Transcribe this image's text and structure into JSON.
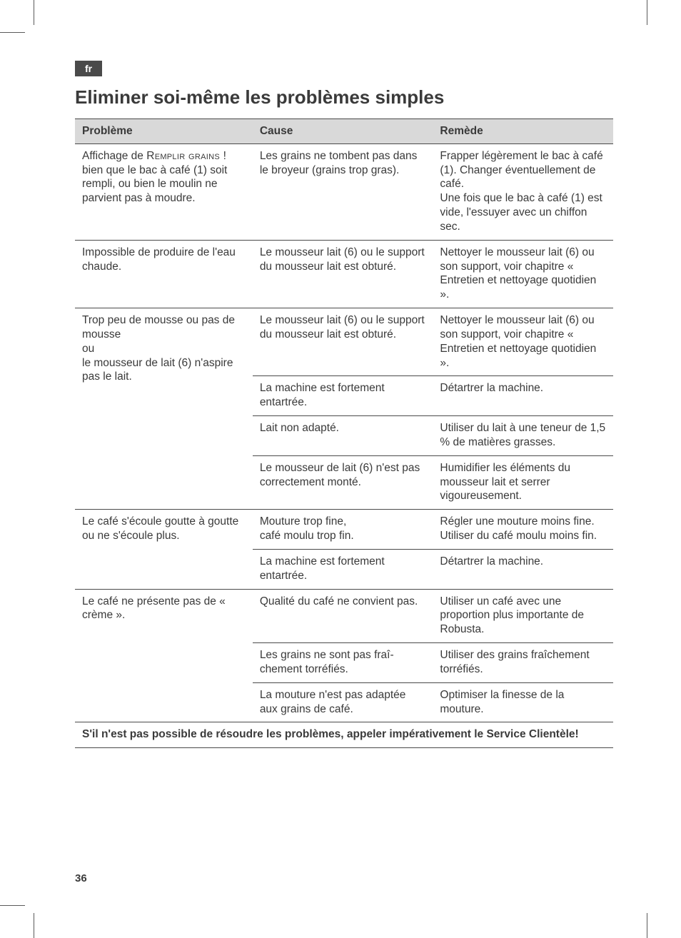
{
  "lang_tab": "fr",
  "title": "Eliminer soi-même les problèmes simples",
  "page_number": "36",
  "table": {
    "headers": [
      "Problème",
      "Cause",
      "Remède"
    ],
    "footer": "S'il n'est pas possible de résoudre les problèmes, appeler impérativement le Service Clientèle!",
    "rows": [
      {
        "problem_pre": "Affichage de ",
        "problem_sc": "Remplir grains !",
        "problem_post": " bien que le bac à café (1) soit rempli, ou bien le moulin ne parvient pas à moudre.",
        "cause": "Les grains ne tombent pas dans le broyeur (grains trop gras).",
        "remedy": "Frapper légèrement le bac à café (1). Changer éventuel­lement de café.\nUne fois que le bac à café (1) est vide, l'essuyer avec un chiffon sec."
      },
      {
        "problem": "Impossible de produire de l'eau chaude.",
        "cause": "Le mousseur lait (6) ou le support du mousseur lait est obturé.",
        "remedy": "Nettoyer le mousseur lait (6) ou son support, voir chapitre « Entretien et nettoyage quotidien »."
      },
      {
        "problem": "Trop peu de mousse ou pas de mousse\nou\nle mousseur de lait (6) n'aspire pas le lait.",
        "problem_rowspan": 4,
        "cause": "Le mousseur lait (6) ou le support du mousseur lait est obturé.",
        "remedy": "Nettoyer le mousseur lait (6) ou son support, voir chapitre « Entretien et nettoyage quotidien »."
      },
      {
        "cause": "La machine est fortement entartrée.",
        "remedy": "Détartrer la machine."
      },
      {
        "cause": "Lait non adapté.",
        "remedy": "Utiliser du lait à une te­neur de 1,5 % de matières grasses."
      },
      {
        "cause": "Le mousseur de lait (6) n'est pas correctement monté.",
        "remedy": "Humidifier les éléments du mousseur lait et serrer vigoureusement."
      },
      {
        "problem": "Le café s'écoule goutte à goutte ou ne s'écoule plus.",
        "problem_rowspan": 2,
        "cause": "Mouture trop fine,\ncafé moulu trop fin.",
        "remedy": "Régler une mouture moins fine. Utiliser du café moulu moins fin."
      },
      {
        "cause": "La machine est fortement entartrée.",
        "remedy": "Détartrer la machine."
      },
      {
        "problem": "Le café ne présente pas de « crème ».",
        "problem_rowspan": 3,
        "cause": "Qualité du café ne convient pas.",
        "remedy": "Utiliser un café avec une proportion plus importante de Robusta."
      },
      {
        "cause": "Les grains ne sont pas fraî­chement torréfiés.",
        "remedy": "Utiliser des grains fraîche­ment torréfiés."
      },
      {
        "cause": "La mouture n'est pas adap­tée aux grains de café.",
        "remedy": "Optimiser la finesse de la mouture."
      }
    ]
  },
  "colors": {
    "header_bg": "#d9d9d9",
    "border": "#4a4a4a",
    "text": "#3a3a3a",
    "tab_bg": "#4a4a4a",
    "tab_text": "#ffffff"
  }
}
